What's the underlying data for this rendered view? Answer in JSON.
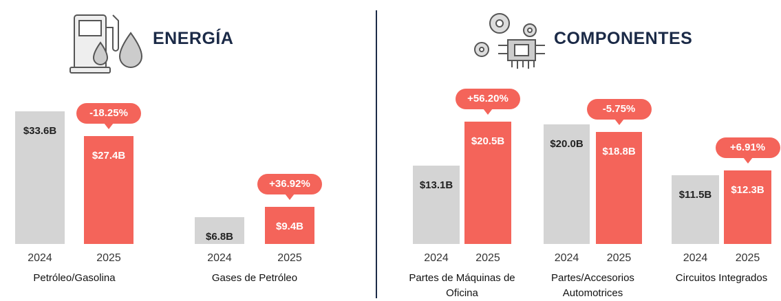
{
  "sections": [
    {
      "title": "ENERGÍA"
    },
    {
      "title": "COMPONENTES"
    }
  ],
  "chart_data": [
    {
      "type": "bar",
      "title": "Petróleo/Gasolina",
      "categories": [
        "2024",
        "2025"
      ],
      "values": [
        33.6,
        27.4
      ],
      "value_labels": [
        "$33.6B",
        "$27.4B"
      ],
      "colors": [
        "#d4d4d4",
        "#f4645a"
      ],
      "annotation": "-18.25%"
    },
    {
      "type": "bar",
      "title": "Gases de Petróleo",
      "categories": [
        "2024",
        "2025"
      ],
      "values": [
        6.8,
        9.4
      ],
      "value_labels": [
        "$6.8B",
        "$9.4B"
      ],
      "colors": [
        "#d4d4d4",
        "#f4645a"
      ],
      "annotation": "+36.92%"
    },
    {
      "type": "bar",
      "title": "Partes de Máquinas de Oficina",
      "categories": [
        "2024",
        "2025"
      ],
      "values": [
        13.1,
        20.5
      ],
      "value_labels": [
        "$13.1B",
        "$20.5B"
      ],
      "colors": [
        "#d4d4d4",
        "#f4645a"
      ],
      "annotation": "+56.20%"
    },
    {
      "type": "bar",
      "title": "Partes/Accesorios Automotrices",
      "categories": [
        "2024",
        "2025"
      ],
      "values": [
        20.0,
        18.8
      ],
      "value_labels": [
        "$20.0B",
        "$18.8B"
      ],
      "colors": [
        "#d4d4d4",
        "#f4645a"
      ],
      "annotation": "-5.75%"
    },
    {
      "type": "bar",
      "title": "Circuitos Integrados",
      "categories": [
        "2024",
        "2025"
      ],
      "values": [
        11.5,
        12.3
      ],
      "value_labels": [
        "$11.5B",
        "$12.3B"
      ],
      "colors": [
        "#d4d4d4",
        "#f4645a"
      ],
      "annotation": "+6.91%"
    }
  ]
}
